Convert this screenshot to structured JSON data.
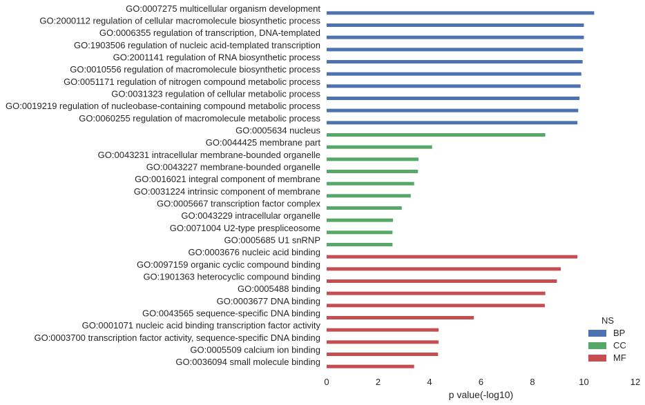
{
  "chart_data": {
    "type": "bar",
    "orientation": "horizontal",
    "xlabel": "p value(-log10)",
    "xlim": [
      0,
      12
    ],
    "xticks": [
      0,
      2,
      4,
      6,
      8,
      10,
      12
    ],
    "grid": false,
    "legend": {
      "title": "NS",
      "placement": "bottom-right",
      "entries": [
        {
          "name": "BP",
          "color": "#4c72b0"
        },
        {
          "name": "CC",
          "color": "#55a868"
        },
        {
          "name": "MF",
          "color": "#c44e52"
        }
      ]
    },
    "bars": [
      {
        "label": "GO:0007275 multicellular organism development",
        "value": 10.4,
        "group": "BP"
      },
      {
        "label": "GO:2000112 regulation of cellular macromolecule biosynthetic process",
        "value": 10.0,
        "group": "BP"
      },
      {
        "label": "GO:0006355 regulation of transcription, DNA-templated",
        "value": 10.0,
        "group": "BP"
      },
      {
        "label": "GO:1903506 regulation of nucleic acid-templated transcription",
        "value": 9.97,
        "group": "BP"
      },
      {
        "label": "GO:2001141 regulation of RNA biosynthetic process",
        "value": 9.95,
        "group": "BP"
      },
      {
        "label": "GO:0010556 regulation of macromolecule biosynthetic process",
        "value": 9.9,
        "group": "BP"
      },
      {
        "label": "GO:0051171 regulation of nitrogen compound metabolic process",
        "value": 9.87,
        "group": "BP"
      },
      {
        "label": "GO:0031323 regulation of cellular metabolic process",
        "value": 9.83,
        "group": "BP"
      },
      {
        "label": "GO:0019219 regulation of nucleobase-containing compound metabolic process",
        "value": 9.78,
        "group": "BP"
      },
      {
        "label": "GO:0060255 regulation of macromolecule metabolic process",
        "value": 9.75,
        "group": "BP"
      },
      {
        "label": "GO:0005634 nucleus",
        "value": 8.5,
        "group": "CC"
      },
      {
        "label": "GO:0044425 membrane part",
        "value": 4.1,
        "group": "CC"
      },
      {
        "label": "GO:0043231 intracellular membrane-bounded organelle",
        "value": 3.57,
        "group": "CC"
      },
      {
        "label": "GO:0043227 membrane-bounded organelle",
        "value": 3.55,
        "group": "CC"
      },
      {
        "label": "GO:0016021 integral component of membrane",
        "value": 3.4,
        "group": "CC"
      },
      {
        "label": "GO:0031224 intrinsic component of membrane",
        "value": 3.27,
        "group": "CC"
      },
      {
        "label": "GO:0005667 transcription factor complex",
        "value": 2.92,
        "group": "CC"
      },
      {
        "label": "GO:0043229 intracellular organelle",
        "value": 2.58,
        "group": "CC"
      },
      {
        "label": "GO:0071004 U2-type prespliceosome",
        "value": 2.56,
        "group": "CC"
      },
      {
        "label": "GO:0005685 U1 snRNP",
        "value": 2.56,
        "group": "CC"
      },
      {
        "label": "GO:0003676 nucleic acid binding",
        "value": 9.75,
        "group": "MF"
      },
      {
        "label": "GO:0097159 organic cyclic compound binding",
        "value": 9.1,
        "group": "MF"
      },
      {
        "label": "GO:1901363 heterocyclic compound binding",
        "value": 8.95,
        "group": "MF"
      },
      {
        "label": "GO:0005488 binding",
        "value": 8.5,
        "group": "MF"
      },
      {
        "label": "GO:0003677 DNA binding",
        "value": 8.48,
        "group": "MF"
      },
      {
        "label": "GO:0043565 sequence-specific DNA binding",
        "value": 5.72,
        "group": "MF"
      },
      {
        "label": "GO:0001071 nucleic acid binding transcription factor activity",
        "value": 4.35,
        "group": "MF"
      },
      {
        "label": "GO:0003700 transcription factor activity, sequence-specific DNA binding",
        "value": 4.35,
        "group": "MF"
      },
      {
        "label": "GO:0005509 calcium ion binding",
        "value": 4.33,
        "group": "MF"
      },
      {
        "label": "GO:0036094 small molecule binding",
        "value": 3.4,
        "group": "MF"
      }
    ]
  }
}
